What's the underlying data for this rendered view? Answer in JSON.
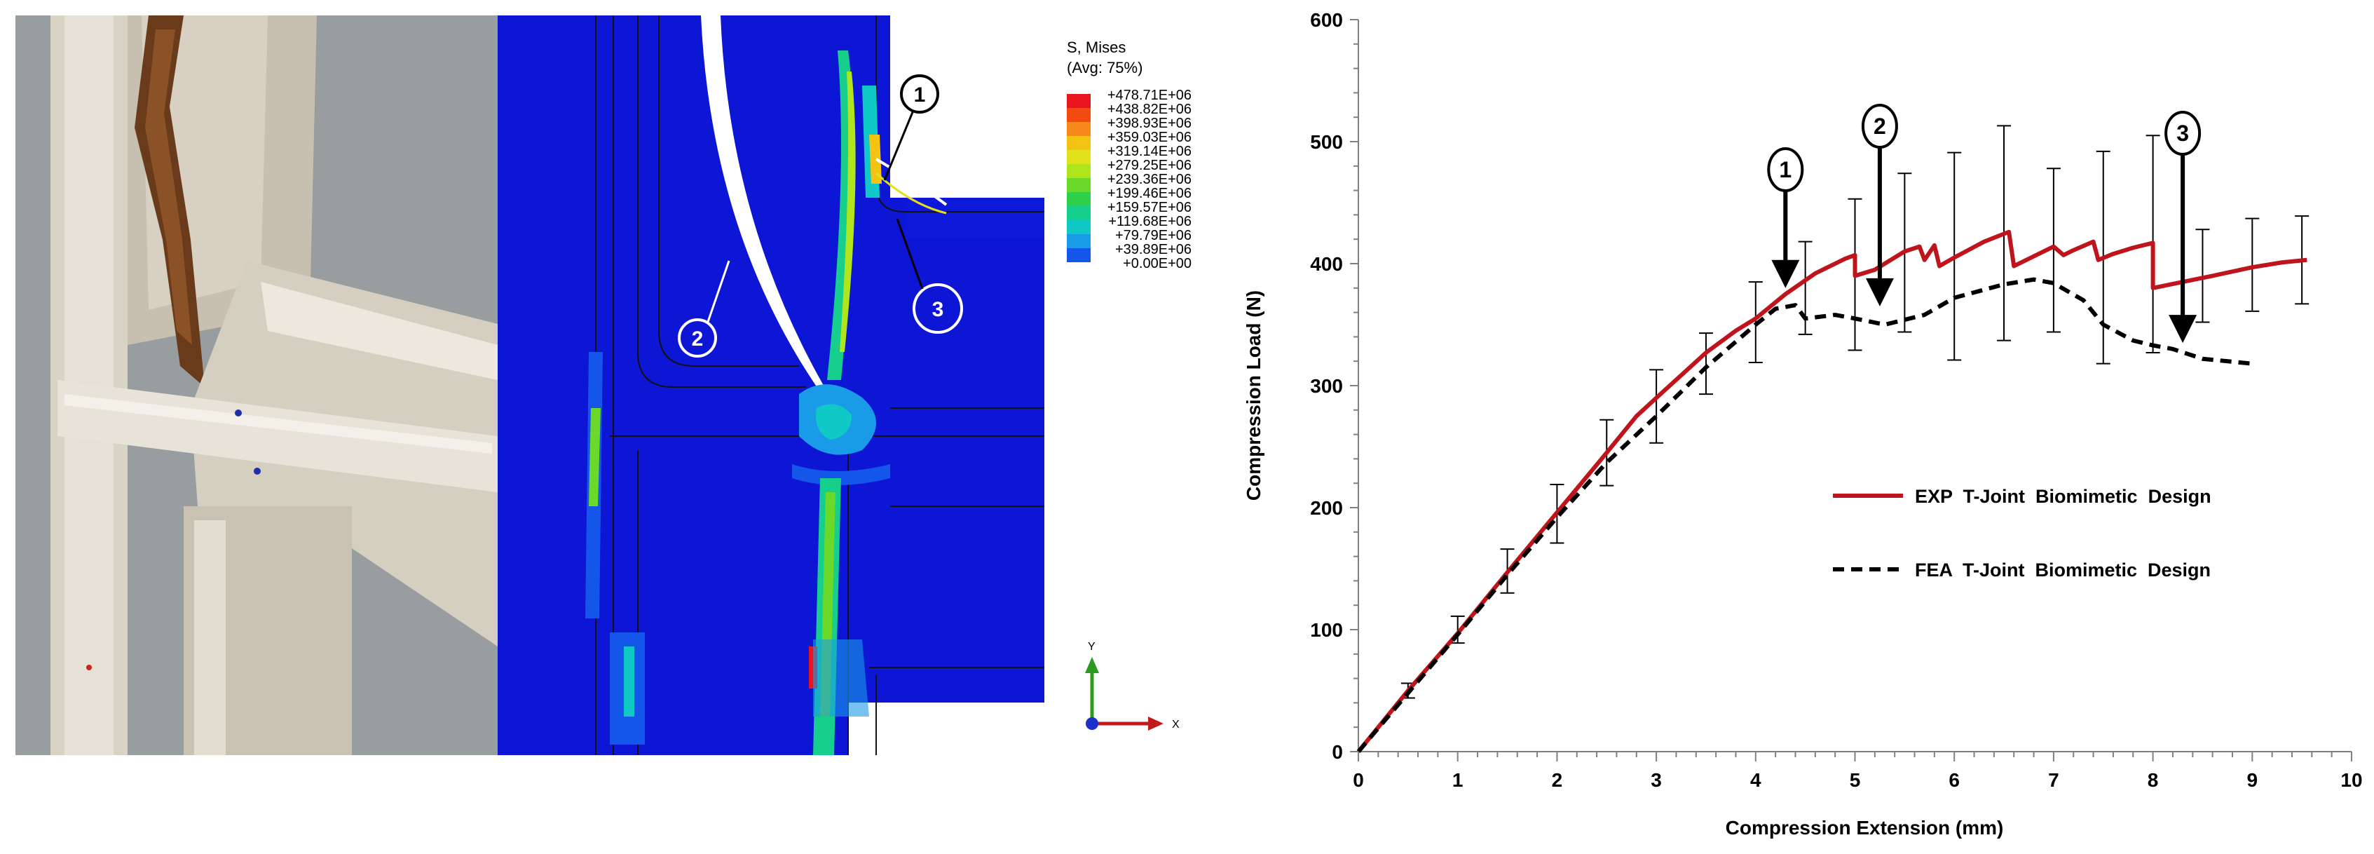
{
  "contour_legend": {
    "title_line1": "S, Mises",
    "title_line2": "(Avg: 75%)",
    "labels": [
      "+478.71E+06",
      "+438.82E+06",
      "+398.93E+06",
      "+359.03E+06",
      "+319.14E+06",
      "+279.25E+06",
      "+239.36E+06",
      "+199.46E+06",
      "+159.57E+06",
      "+119.68E+06",
      "+79.79E+06",
      "+39.89E+06",
      "+0.00E+00"
    ],
    "colors": [
      "#e8141e",
      "#f24a10",
      "#f7891a",
      "#f2c312",
      "#e2e11a",
      "#b0e51e",
      "#6ad92a",
      "#2fd14a",
      "#16cf8c",
      "#10c9c6",
      "#1a9be8",
      "#1456ea",
      "#0c16d4"
    ]
  },
  "fea_markers": [
    "1",
    "2",
    "3"
  ],
  "axis_triad": {
    "y": "Y",
    "x": "X"
  },
  "chart_data": {
    "type": "line",
    "xlabel": "Compression Extension  (mm)",
    "ylabel": "Compression Load (N)",
    "xlim": [
      0,
      10
    ],
    "ylim": [
      0,
      600
    ],
    "xticks": [
      0,
      1,
      2,
      3,
      4,
      5,
      6,
      7,
      8,
      9,
      10
    ],
    "yticks": [
      0,
      100,
      200,
      300,
      400,
      500,
      600
    ],
    "legend_position": "right-center",
    "series": [
      {
        "name": "EXP  T-Joint  Biomimetic  Design",
        "color": "#c0141c",
        "style": "solid",
        "x": [
          0,
          0.5,
          1,
          1.5,
          2,
          2.5,
          2.8,
          3,
          3.5,
          3.8,
          4,
          4.3,
          4.6,
          4.9,
          5.0,
          5.0,
          5.2,
          5.5,
          5.65,
          5.7,
          5.8,
          5.85,
          6.0,
          6.3,
          6.55,
          6.6,
          6.8,
          7.0,
          7.1,
          7.2,
          7.4,
          7.45,
          7.6,
          7.8,
          8.0,
          8.0,
          8.3,
          8.6,
          9.0,
          9.3,
          9.55
        ],
        "y": [
          0,
          50,
          97,
          147,
          196,
          245,
          275,
          290,
          327,
          345,
          355,
          375,
          392,
          404,
          407,
          390,
          395,
          410,
          414,
          403,
          415,
          398,
          405,
          418,
          426,
          398,
          406,
          414,
          407,
          411,
          418,
          403,
          408,
          413,
          417,
          380,
          385,
          390,
          397,
          401,
          403
        ]
      },
      {
        "name": "FEA  T-Joint  Biomimetic  Design",
        "color": "#000000",
        "style": "dashed",
        "x": [
          0,
          0.5,
          1,
          1.5,
          2,
          2.5,
          3,
          3.5,
          4,
          4.2,
          4.4,
          4.5,
          4.8,
          5.0,
          5.3,
          5.7,
          6.0,
          6.5,
          6.8,
          7.0,
          7.3,
          7.5,
          7.8,
          8.0,
          8.2,
          8.5,
          9.0
        ],
        "y": [
          0,
          48,
          96,
          145,
          192,
          237,
          275,
          315,
          350,
          363,
          366,
          355,
          358,
          355,
          350,
          358,
          372,
          383,
          387,
          384,
          370,
          350,
          337,
          333,
          330,
          322,
          318
        ]
      }
    ],
    "error_bars": [
      {
        "x": 0.5,
        "mean": 50,
        "err": 6
      },
      {
        "x": 1.0,
        "mean": 100,
        "err": 11
      },
      {
        "x": 1.5,
        "mean": 148,
        "err": 18
      },
      {
        "x": 2.0,
        "mean": 195,
        "err": 24
      },
      {
        "x": 2.5,
        "mean": 245,
        "err": 27
      },
      {
        "x": 3.0,
        "mean": 283,
        "err": 30
      },
      {
        "x": 3.5,
        "mean": 318,
        "err": 25
      },
      {
        "x": 4.0,
        "mean": 352,
        "err": 33
      },
      {
        "x": 4.5,
        "mean": 380,
        "err": 38
      },
      {
        "x": 5.0,
        "mean": 391,
        "err": 62
      },
      {
        "x": 5.5,
        "mean": 409,
        "err": 65
      },
      {
        "x": 6.0,
        "mean": 406,
        "err": 85
      },
      {
        "x": 6.5,
        "mean": 425,
        "err": 88
      },
      {
        "x": 7.0,
        "mean": 411,
        "err": 67
      },
      {
        "x": 7.5,
        "mean": 405,
        "err": 87
      },
      {
        "x": 8.0,
        "mean": 416,
        "err": 89
      },
      {
        "x": 8.5,
        "mean": 390,
        "err": 38
      },
      {
        "x": 9.0,
        "mean": 399,
        "err": 38
      },
      {
        "x": 9.5,
        "mean": 403,
        "err": 36
      }
    ],
    "annotations": [
      {
        "label": "1",
        "x": 4.3,
        "arrow_tip_y": 380
      },
      {
        "label": "2",
        "x": 5.25,
        "arrow_tip_y": 365
      },
      {
        "label": "3",
        "x": 8.3,
        "arrow_tip_y": 335
      }
    ]
  }
}
